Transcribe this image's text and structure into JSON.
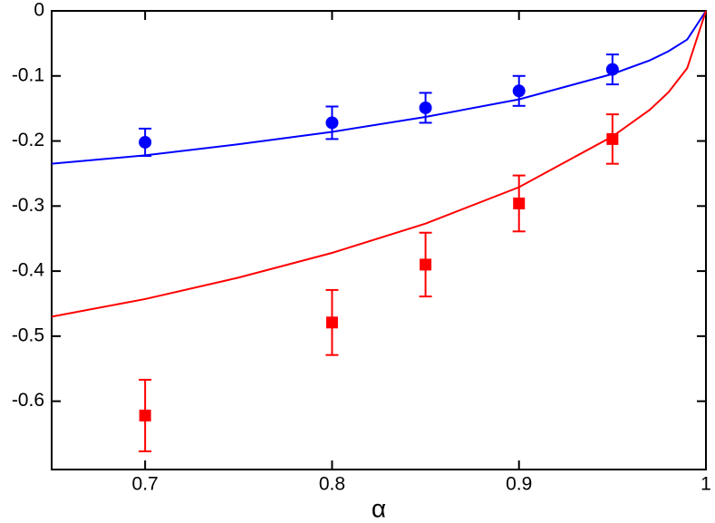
{
  "chart_data": {
    "type": "scatter",
    "x_label": "α",
    "xlim": [
      0.65,
      1.0
    ],
    "ylim": [
      -0.705,
      0
    ],
    "xticks": [
      0.7,
      0.8,
      0.9,
      1
    ],
    "yticks": [
      0,
      -0.1,
      -0.2,
      -0.3,
      -0.4,
      -0.5,
      -0.6
    ],
    "series": [
      {
        "kind": "line",
        "color": "#0000ff",
        "x": [
          0.65,
          0.7,
          0.75,
          0.8,
          0.85,
          0.9,
          0.95,
          0.97,
          0.98,
          0.99,
          1.0
        ],
        "values": [
          -0.235,
          -0.222,
          -0.205,
          -0.186,
          -0.163,
          -0.136,
          -0.097,
          -0.076,
          -0.062,
          -0.044,
          0
        ]
      },
      {
        "kind": "line",
        "color": "#ff0000",
        "x": [
          0.65,
          0.7,
          0.75,
          0.8,
          0.85,
          0.9,
          0.95,
          0.97,
          0.98,
          0.99,
          1.0
        ],
        "values": [
          -0.47,
          -0.443,
          -0.41,
          -0.372,
          -0.327,
          -0.271,
          -0.193,
          -0.152,
          -0.125,
          -0.088,
          0
        ]
      },
      {
        "kind": "points",
        "marker": "circle",
        "color": "#0000ff",
        "x": [
          0.7,
          0.8,
          0.85,
          0.9,
          0.95
        ],
        "values": [
          -0.202,
          -0.172,
          -0.149,
          -0.123,
          -0.09
        ],
        "errors": [
          0.021,
          0.025,
          0.023,
          0.023,
          0.023
        ]
      },
      {
        "kind": "points",
        "marker": "square",
        "color": "#ff0000",
        "x": [
          0.7,
          0.8,
          0.85,
          0.9,
          0.95
        ],
        "values": [
          -0.622,
          -0.479,
          -0.39,
          -0.296,
          -0.197
        ],
        "errors": [
          0.055,
          0.05,
          0.049,
          0.043,
          0.038
        ]
      }
    ]
  }
}
